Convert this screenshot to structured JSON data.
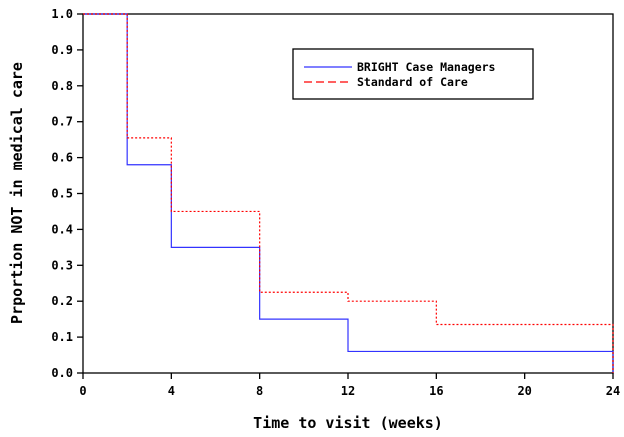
{
  "chart_data": {
    "type": "line",
    "step": true,
    "title": "",
    "xlabel": "Time to visit (weeks)",
    "ylabel": "Prportion NOT in medical care",
    "xlim": [
      0,
      24
    ],
    "ylim": [
      0,
      1.0
    ],
    "x_ticks": [
      0,
      4,
      8,
      12,
      16,
      20,
      24
    ],
    "y_ticks": [
      0.0,
      0.1,
      0.2,
      0.3,
      0.4,
      0.5,
      0.6,
      0.7,
      0.8,
      0.9,
      1.0
    ],
    "x_tick_labels": [
      "0",
      "4",
      "8",
      "12",
      "16",
      "20",
      "24"
    ],
    "y_tick_labels": [
      "0.0",
      "0.1",
      "0.2",
      "0.3",
      "0.4",
      "0.5",
      "0.6",
      "0.7",
      "0.8",
      "0.9",
      "1.0"
    ],
    "grid": false,
    "legend_position": "top-right",
    "series": [
      {
        "name": "BRIGHT Case Managers",
        "color": "#3333ff",
        "line_style": "solid",
        "x": [
          0,
          2,
          4,
          8,
          12,
          24,
          24
        ],
        "y": [
          1.0,
          0.58,
          0.35,
          0.15,
          0.06,
          0.06,
          0.0
        ]
      },
      {
        "name": "Standard of Care",
        "color": "#ff0000",
        "line_style": "dashed",
        "x": [
          0,
          2,
          4,
          8,
          12,
          16,
          24,
          24
        ],
        "y": [
          1.0,
          0.655,
          0.45,
          0.225,
          0.2,
          0.135,
          0.135,
          0.0
        ]
      }
    ]
  }
}
